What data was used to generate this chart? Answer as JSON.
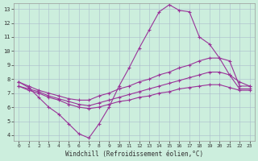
{
  "xlabel": "Windchill (Refroidissement éolien,°C)",
  "bg_color": "#cceedd",
  "line_color": "#993399",
  "grid_color": "#aabbcc",
  "xlim": [
    -0.5,
    23.5
  ],
  "ylim": [
    3.6,
    13.4
  ],
  "xticks": [
    0,
    1,
    2,
    3,
    4,
    5,
    6,
    7,
    8,
    9,
    10,
    11,
    12,
    13,
    14,
    15,
    16,
    17,
    18,
    19,
    20,
    21,
    22,
    23
  ],
  "yticks": [
    4,
    5,
    6,
    7,
    8,
    9,
    10,
    11,
    12,
    13
  ],
  "line1_x": [
    0,
    1,
    2,
    3,
    4,
    5,
    6,
    7,
    8,
    9,
    10,
    11,
    12,
    13,
    14,
    15,
    16,
    17,
    18,
    19,
    20,
    21,
    22,
    23
  ],
  "line1_y": [
    7.8,
    7.4,
    6.7,
    6.0,
    5.5,
    4.8,
    4.1,
    3.8,
    4.8,
    6.0,
    7.5,
    8.8,
    10.2,
    11.5,
    12.8,
    13.3,
    12.9,
    12.8,
    11.0,
    10.5,
    9.5,
    8.3,
    7.8,
    7.5
  ],
  "line2_x": [
    0,
    1,
    2,
    3,
    4,
    5,
    6,
    7,
    8,
    9,
    10,
    11,
    12,
    13,
    14,
    15,
    16,
    17,
    18,
    19,
    20,
    21,
    22,
    23
  ],
  "line2_y": [
    7.8,
    7.5,
    7.2,
    7.0,
    6.8,
    6.6,
    6.5,
    6.5,
    6.8,
    7.0,
    7.3,
    7.5,
    7.8,
    8.0,
    8.3,
    8.5,
    8.8,
    9.0,
    9.3,
    9.5,
    9.5,
    9.3,
    7.5,
    7.5
  ],
  "line3_x": [
    0,
    1,
    2,
    3,
    4,
    5,
    6,
    7,
    8,
    9,
    10,
    11,
    12,
    13,
    14,
    15,
    16,
    17,
    18,
    19,
    20,
    21,
    22,
    23
  ],
  "line3_y": [
    7.5,
    7.3,
    7.1,
    6.8,
    6.6,
    6.4,
    6.2,
    6.1,
    6.3,
    6.5,
    6.7,
    6.9,
    7.1,
    7.3,
    7.5,
    7.7,
    7.9,
    8.1,
    8.3,
    8.5,
    8.5,
    8.3,
    7.3,
    7.3
  ],
  "line4_x": [
    0,
    1,
    2,
    3,
    4,
    5,
    6,
    7,
    8,
    9,
    10,
    11,
    12,
    13,
    14,
    15,
    16,
    17,
    18,
    19,
    20,
    21,
    22,
    23
  ],
  "line4_y": [
    7.5,
    7.2,
    7.0,
    6.7,
    6.5,
    6.2,
    6.0,
    5.9,
    6.0,
    6.2,
    6.4,
    6.5,
    6.7,
    6.8,
    7.0,
    7.1,
    7.3,
    7.4,
    7.5,
    7.6,
    7.6,
    7.4,
    7.2,
    7.2
  ]
}
